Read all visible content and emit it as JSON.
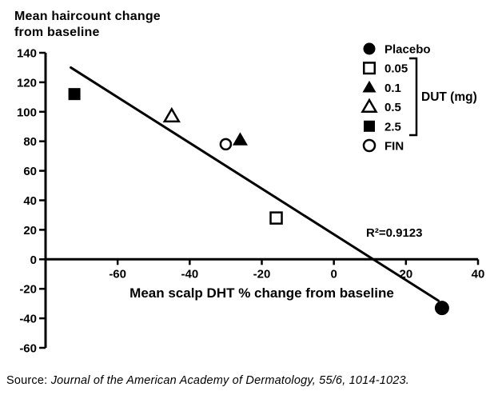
{
  "figure": {
    "title_line1": "Mean haircount change",
    "title_line2": "from baseline",
    "source_prefix": "Source:",
    "source_citation": "Journal of the American Academy of Dermatology, 55/6, 1014-1023."
  },
  "chart_data": {
    "type": "scatter",
    "title": "Mean haircount change from baseline",
    "xlabel": "Mean scalp DHT % change from baseline",
    "ylabel": "Mean haircount change from baseline",
    "xlim": [
      -80,
      40
    ],
    "ylim": [
      -60,
      140
    ],
    "x_ticks": [
      -60,
      -40,
      -20,
      0,
      20,
      40
    ],
    "y_ticks": [
      140,
      120,
      100,
      80,
      60,
      40,
      20,
      0,
      -20,
      -40,
      -60
    ],
    "grid": false,
    "annotation": "R²=0.9123",
    "r_squared": 0.9123,
    "series": [
      {
        "name": "Placebo",
        "marker": "circle-filled",
        "group": "",
        "points": [
          {
            "x": 30,
            "y": -33
          }
        ]
      },
      {
        "name": "0.05",
        "marker": "square-open",
        "group": "DUT (mg)",
        "points": [
          {
            "x": -16,
            "y": 28
          }
        ]
      },
      {
        "name": "0.1",
        "marker": "triangle-filled",
        "group": "DUT (mg)",
        "points": [
          {
            "x": -26,
            "y": 81
          }
        ]
      },
      {
        "name": "0.5",
        "marker": "triangle-open",
        "group": "DUT (mg)",
        "points": [
          {
            "x": -45,
            "y": 97
          }
        ]
      },
      {
        "name": "2.5",
        "marker": "square-filled",
        "group": "DUT (mg)",
        "points": [
          {
            "x": -72,
            "y": 112
          }
        ]
      },
      {
        "name": "FIN",
        "marker": "circle-open",
        "group": "",
        "points": [
          {
            "x": -30,
            "y": 78
          }
        ]
      }
    ],
    "trendline": {
      "x1": -73,
      "y1": 130,
      "x2": 29,
      "y2": -28
    },
    "legend": {
      "position": "top-right",
      "items": [
        {
          "marker": "circle-filled",
          "label": "Placebo"
        },
        {
          "marker": "square-open",
          "label": "0.05"
        },
        {
          "marker": "triangle-filled",
          "label": "0.1"
        },
        {
          "marker": "triangle-open",
          "label": "0.5"
        },
        {
          "marker": "square-filled",
          "label": "2.5"
        },
        {
          "marker": "circle-open",
          "label": "FIN"
        }
      ],
      "bracket_label": "DUT (mg)",
      "bracket_items": [
        "0.05",
        "0.1",
        "0.5",
        "2.5"
      ]
    },
    "colors": {
      "foreground": "#000000",
      "background": "#ffffff"
    }
  }
}
